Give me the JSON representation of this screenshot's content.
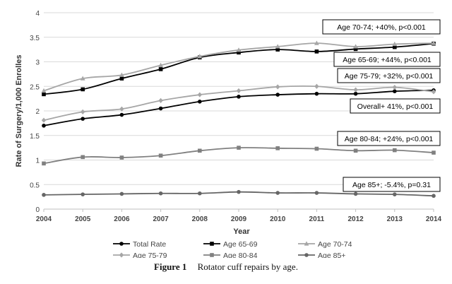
{
  "chart_data": {
    "type": "line",
    "title": "",
    "xlabel": "Year",
    "ylabel": "Rate of Surgery/1,000 Enrolles",
    "x": [
      "2004",
      "2005",
      "2006",
      "2007",
      "2008",
      "2009",
      "2010",
      "2011",
      "2012",
      "2013",
      "2014"
    ],
    "xlim": [
      2004,
      2014
    ],
    "ylim": [
      0,
      4
    ],
    "yticks": [
      "0",
      "0.5",
      "1",
      "1.5",
      "2",
      "2.5",
      "3",
      "3.5",
      "4"
    ],
    "grid": "horizontal",
    "legend_position": "bottom",
    "series": [
      {
        "name": "Total Rate",
        "color": "#000000",
        "marker": "circle",
        "values": [
          1.7,
          1.84,
          1.92,
          2.05,
          2.19,
          2.29,
          2.33,
          2.35,
          2.35,
          2.4,
          2.42
        ]
      },
      {
        "name": "Age 65-69",
        "color": "#000000",
        "marker": "square",
        "values": [
          2.34,
          2.44,
          2.66,
          2.85,
          3.09,
          3.19,
          3.25,
          3.21,
          3.26,
          3.3,
          3.37
        ]
      },
      {
        "name": "Age 70-74",
        "color": "#a6a6a6",
        "marker": "triangle",
        "values": [
          2.41,
          2.66,
          2.73,
          2.93,
          3.11,
          3.24,
          3.31,
          3.38,
          3.31,
          3.36,
          3.38
        ]
      },
      {
        "name": "Age 75-79",
        "color": "#a6a6a6",
        "marker": "diamond",
        "values": [
          1.81,
          1.98,
          2.04,
          2.21,
          2.33,
          2.41,
          2.49,
          2.5,
          2.43,
          2.48,
          2.39
        ]
      },
      {
        "name": "Age 80-84",
        "color": "#808080",
        "marker": "square",
        "values": [
          0.93,
          1.06,
          1.05,
          1.09,
          1.19,
          1.25,
          1.24,
          1.23,
          1.19,
          1.2,
          1.15
        ]
      },
      {
        "name": "Age 85+",
        "color": "#666666",
        "marker": "circle",
        "values": [
          0.29,
          0.3,
          0.31,
          0.32,
          0.32,
          0.35,
          0.33,
          0.33,
          0.31,
          0.3,
          0.27
        ]
      }
    ],
    "annotations": [
      "Age 70-74; +40%, p<0.001",
      "Age 65-69; +44%, p<0.001",
      "Age 75-79; +32%, p<0.001",
      "Overall+ 41%, p<0.001",
      "Age 80-84; +24%, p<0.001",
      "Age 85+; -5.4%, p=0.31"
    ]
  },
  "caption": {
    "label": "Figure 1",
    "text": "Rotator cuff repairs by age."
  }
}
